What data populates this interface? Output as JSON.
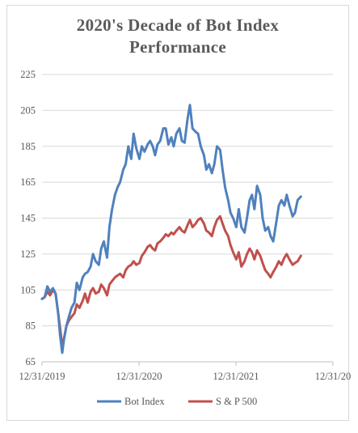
{
  "chart_data": {
    "type": "line",
    "title": "2020's Decade of Bot Index Performance",
    "title_lines": [
      "2020's Decade of Bot Index",
      "Performance"
    ],
    "ylim": [
      65,
      225
    ],
    "yticks": [
      65,
      85,
      105,
      125,
      145,
      165,
      185,
      205,
      225
    ],
    "xlim": [
      "2019-12-31",
      "2022-12-31"
    ],
    "xticks": [
      "12/31/2019",
      "12/31/2020",
      "12/31/2021",
      "12/31/20"
    ],
    "grid": true,
    "legend": "bottom",
    "series": [
      {
        "name": "Bot Index",
        "color": "#4f81bd",
        "points": [
          [
            "2019-12-31",
            100
          ],
          [
            "2020-01-10",
            101
          ],
          [
            "2020-01-20",
            107
          ],
          [
            "2020-01-30",
            104
          ],
          [
            "2020-02-10",
            106
          ],
          [
            "2020-02-20",
            103
          ],
          [
            "2020-03-01",
            92
          ],
          [
            "2020-03-08",
            80
          ],
          [
            "2020-03-16",
            70
          ],
          [
            "2020-03-23",
            78
          ],
          [
            "2020-04-01",
            85
          ],
          [
            "2020-04-10",
            90
          ],
          [
            "2020-04-20",
            95
          ],
          [
            "2020-05-01",
            98
          ],
          [
            "2020-05-10",
            109
          ],
          [
            "2020-05-20",
            105
          ],
          [
            "2020-06-01",
            112
          ],
          [
            "2020-06-10",
            114
          ],
          [
            "2020-06-20",
            115
          ],
          [
            "2020-07-01",
            118
          ],
          [
            "2020-07-10",
            125
          ],
          [
            "2020-07-20",
            121
          ],
          [
            "2020-08-01",
            119
          ],
          [
            "2020-08-10",
            128
          ],
          [
            "2020-08-20",
            132
          ],
          [
            "2020-09-01",
            123
          ],
          [
            "2020-09-10",
            140
          ],
          [
            "2020-09-20",
            150
          ],
          [
            "2020-10-01",
            158
          ],
          [
            "2020-10-10",
            162
          ],
          [
            "2020-10-20",
            165
          ],
          [
            "2020-11-01",
            172
          ],
          [
            "2020-11-10",
            175
          ],
          [
            "2020-11-20",
            185
          ],
          [
            "2020-12-01",
            178
          ],
          [
            "2020-12-10",
            192
          ],
          [
            "2020-12-20",
            184
          ],
          [
            "2021-01-01",
            178
          ],
          [
            "2021-01-10",
            185
          ],
          [
            "2021-01-20",
            182
          ],
          [
            "2021-02-01",
            186
          ],
          [
            "2021-02-10",
            188
          ],
          [
            "2021-02-20",
            185
          ],
          [
            "2021-03-01",
            180
          ],
          [
            "2021-03-10",
            186
          ],
          [
            "2021-03-20",
            188
          ],
          [
            "2021-04-01",
            195
          ],
          [
            "2021-04-10",
            195
          ],
          [
            "2021-04-20",
            186
          ],
          [
            "2021-05-01",
            190
          ],
          [
            "2021-05-10",
            185
          ],
          [
            "2021-05-20",
            192
          ],
          [
            "2021-06-01",
            195
          ],
          [
            "2021-06-10",
            188
          ],
          [
            "2021-06-20",
            187
          ],
          [
            "2021-07-01",
            200
          ],
          [
            "2021-07-10",
            208
          ],
          [
            "2021-07-20",
            195
          ],
          [
            "2021-08-01",
            193
          ],
          [
            "2021-08-10",
            192
          ],
          [
            "2021-08-20",
            185
          ],
          [
            "2021-09-01",
            180
          ],
          [
            "2021-09-10",
            172
          ],
          [
            "2021-09-20",
            175
          ],
          [
            "2021-10-01",
            170
          ],
          [
            "2021-10-10",
            175
          ],
          [
            "2021-10-20",
            185
          ],
          [
            "2021-11-01",
            183
          ],
          [
            "2021-11-10",
            172
          ],
          [
            "2021-11-20",
            162
          ],
          [
            "2021-12-01",
            155
          ],
          [
            "2021-12-10",
            148
          ],
          [
            "2021-12-20",
            145
          ],
          [
            "2022-01-01",
            140
          ],
          [
            "2022-01-10",
            150
          ],
          [
            "2022-01-20",
            140
          ],
          [
            "2022-02-01",
            137
          ],
          [
            "2022-02-10",
            145
          ],
          [
            "2022-02-20",
            155
          ],
          [
            "2022-03-01",
            158
          ],
          [
            "2022-03-10",
            150
          ],
          [
            "2022-03-20",
            163
          ],
          [
            "2022-04-01",
            158
          ],
          [
            "2022-04-10",
            145
          ],
          [
            "2022-04-20",
            138
          ],
          [
            "2022-05-01",
            140
          ],
          [
            "2022-05-10",
            135
          ],
          [
            "2022-05-20",
            132
          ],
          [
            "2022-06-01",
            143
          ],
          [
            "2022-06-10",
            152
          ],
          [
            "2022-06-20",
            155
          ],
          [
            "2022-07-01",
            152
          ],
          [
            "2022-07-10",
            158
          ],
          [
            "2022-07-20",
            152
          ],
          [
            "2022-08-01",
            146
          ],
          [
            "2022-08-10",
            148
          ],
          [
            "2022-08-20",
            155
          ],
          [
            "2022-09-01",
            157
          ]
        ]
      },
      {
        "name": "S & P 500",
        "color": "#c0504d",
        "points": [
          [
            "2019-12-31",
            100
          ],
          [
            "2020-01-10",
            101
          ],
          [
            "2020-01-20",
            104
          ],
          [
            "2020-01-30",
            102
          ],
          [
            "2020-02-10",
            105
          ],
          [
            "2020-02-20",
            103
          ],
          [
            "2020-03-01",
            92
          ],
          [
            "2020-03-08",
            84
          ],
          [
            "2020-03-16",
            74
          ],
          [
            "2020-03-23",
            78
          ],
          [
            "2020-04-01",
            85
          ],
          [
            "2020-04-10",
            88
          ],
          [
            "2020-04-20",
            90
          ],
          [
            "2020-05-01",
            92
          ],
          [
            "2020-05-10",
            97
          ],
          [
            "2020-05-20",
            95
          ],
          [
            "2020-06-01",
            99
          ],
          [
            "2020-06-10",
            103
          ],
          [
            "2020-06-20",
            98
          ],
          [
            "2020-07-01",
            104
          ],
          [
            "2020-07-10",
            106
          ],
          [
            "2020-07-20",
            103
          ],
          [
            "2020-08-01",
            104
          ],
          [
            "2020-08-10",
            108
          ],
          [
            "2020-08-20",
            106
          ],
          [
            "2020-09-01",
            102
          ],
          [
            "2020-09-10",
            108
          ],
          [
            "2020-09-20",
            110
          ],
          [
            "2020-10-01",
            112
          ],
          [
            "2020-10-10",
            113
          ],
          [
            "2020-10-20",
            114
          ],
          [
            "2020-11-01",
            112
          ],
          [
            "2020-11-10",
            116
          ],
          [
            "2020-11-20",
            118
          ],
          [
            "2020-12-01",
            119
          ],
          [
            "2020-12-10",
            121
          ],
          [
            "2020-12-20",
            119
          ],
          [
            "2021-01-01",
            120
          ],
          [
            "2021-01-10",
            124
          ],
          [
            "2021-01-20",
            126
          ],
          [
            "2021-02-01",
            129
          ],
          [
            "2021-02-10",
            130
          ],
          [
            "2021-02-20",
            128
          ],
          [
            "2021-03-01",
            127
          ],
          [
            "2021-03-10",
            131
          ],
          [
            "2021-03-20",
            132
          ],
          [
            "2021-04-01",
            134
          ],
          [
            "2021-04-10",
            136
          ],
          [
            "2021-04-20",
            135
          ],
          [
            "2021-05-01",
            137
          ],
          [
            "2021-05-10",
            136
          ],
          [
            "2021-05-20",
            138
          ],
          [
            "2021-06-01",
            140
          ],
          [
            "2021-06-10",
            138
          ],
          [
            "2021-06-20",
            137
          ],
          [
            "2021-07-01",
            141
          ],
          [
            "2021-07-10",
            144
          ],
          [
            "2021-07-20",
            140
          ],
          [
            "2021-08-01",
            142
          ],
          [
            "2021-08-10",
            144
          ],
          [
            "2021-08-20",
            145
          ],
          [
            "2021-09-01",
            142
          ],
          [
            "2021-09-10",
            138
          ],
          [
            "2021-09-20",
            137
          ],
          [
            "2021-10-01",
            135
          ],
          [
            "2021-10-10",
            140
          ],
          [
            "2021-10-20",
            144
          ],
          [
            "2021-11-01",
            146
          ],
          [
            "2021-11-10",
            142
          ],
          [
            "2021-11-20",
            138
          ],
          [
            "2021-12-01",
            135
          ],
          [
            "2021-12-10",
            130
          ],
          [
            "2021-12-20",
            126
          ],
          [
            "2022-01-01",
            122
          ],
          [
            "2022-01-10",
            126
          ],
          [
            "2022-01-20",
            118
          ],
          [
            "2022-02-01",
            121
          ],
          [
            "2022-02-10",
            125
          ],
          [
            "2022-02-20",
            128
          ],
          [
            "2022-03-01",
            126
          ],
          [
            "2022-03-10",
            122
          ],
          [
            "2022-03-20",
            127
          ],
          [
            "2022-04-01",
            124
          ],
          [
            "2022-04-10",
            120
          ],
          [
            "2022-04-20",
            116
          ],
          [
            "2022-05-01",
            114
          ],
          [
            "2022-05-10",
            112
          ],
          [
            "2022-05-20",
            115
          ],
          [
            "2022-06-01",
            118
          ],
          [
            "2022-06-10",
            121
          ],
          [
            "2022-06-20",
            119
          ],
          [
            "2022-07-01",
            123
          ],
          [
            "2022-07-10",
            125
          ],
          [
            "2022-07-20",
            122
          ],
          [
            "2022-08-01",
            119
          ],
          [
            "2022-08-10",
            120
          ],
          [
            "2022-08-20",
            121
          ],
          [
            "2022-09-01",
            124
          ]
        ]
      }
    ]
  }
}
